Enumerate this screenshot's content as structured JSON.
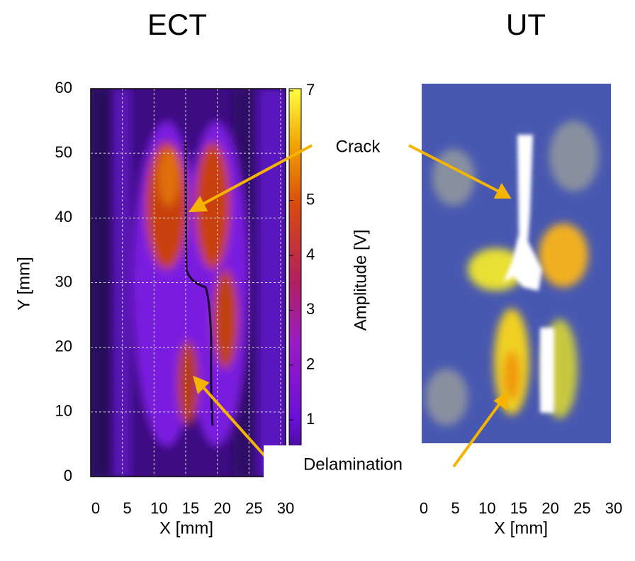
{
  "ect": {
    "title": "ECT",
    "x_label": "X [mm]",
    "y_label": "Y [mm]",
    "xticks": [
      0,
      5,
      10,
      15,
      20,
      25,
      30
    ],
    "yticks": [
      0,
      10,
      20,
      30,
      40,
      50,
      60
    ],
    "colorbar": {
      "label": "Amplitude [V]",
      "ticks": [
        1,
        2,
        3,
        4,
        5,
        7
      ]
    }
  },
  "ut": {
    "title": "UT",
    "x_label": "X [mm]",
    "xticks": [
      0,
      5,
      10,
      15,
      20,
      25,
      30
    ]
  },
  "annotations": {
    "crack": "Crack",
    "delamination": "Delamination"
  }
}
